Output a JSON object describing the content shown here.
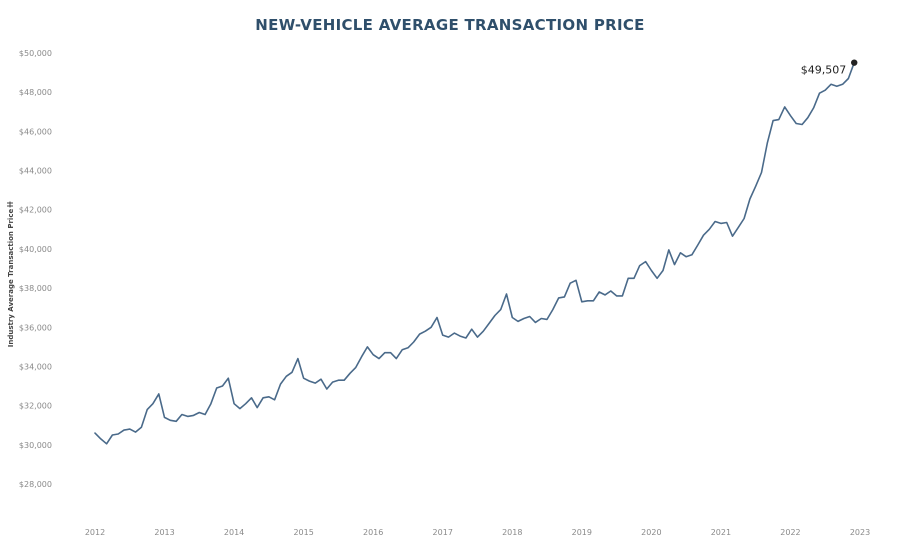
{
  "chart_data": {
    "type": "line",
    "title": "NEW-VEHICLE AVERAGE TRANSACTION PRICE",
    "ylabel": "Industry Average Transaction Price",
    "ylabel_icon": "sort-icon",
    "ylim": [
      26000,
      51000
    ],
    "yticks": [
      28000,
      30000,
      32000,
      34000,
      36000,
      38000,
      40000,
      42000,
      44000,
      46000,
      48000,
      50000
    ],
    "ytick_labels": [
      "$28,000",
      "$30,000",
      "$32,000",
      "$34,000",
      "$36,000",
      "$38,000",
      "$40,000",
      "$42,000",
      "$44,000",
      "$46,000",
      "$48,000",
      "$50,000"
    ],
    "xlim": [
      2011.5,
      2023.45
    ],
    "xticks": [
      2012,
      2013,
      2014,
      2015,
      2016,
      2017,
      2018,
      2019,
      2020,
      2021,
      2022,
      2023
    ],
    "xtick_labels": [
      "2012",
      "2013",
      "2014",
      "2015",
      "2016",
      "2017",
      "2018",
      "2019",
      "2020",
      "2021",
      "2022",
      "2023"
    ],
    "grid": false,
    "line_color": "#4a6a8a",
    "marker_color": "#222222",
    "end_label": "$49,507",
    "series": [
      {
        "x": [
          2012.0,
          2012.083,
          2012.167,
          2012.25,
          2012.333,
          2012.417,
          2012.5,
          2012.583,
          2012.667,
          2012.75,
          2012.833,
          2012.917,
          2013.0,
          2013.083,
          2013.167,
          2013.25,
          2013.333,
          2013.417,
          2013.5,
          2013.583,
          2013.667,
          2013.75,
          2013.833,
          2013.917,
          2014.0,
          2014.083,
          2014.167,
          2014.25,
          2014.333,
          2014.417,
          2014.5,
          2014.583,
          2014.667,
          2014.75,
          2014.833,
          2014.917,
          2015.0,
          2015.083,
          2015.167,
          2015.25,
          2015.333,
          2015.417,
          2015.5,
          2015.583,
          2015.667,
          2015.75,
          2015.833,
          2015.917,
          2016.0,
          2016.083,
          2016.167,
          2016.25,
          2016.333,
          2016.417,
          2016.5,
          2016.583,
          2016.667,
          2016.75,
          2016.833,
          2016.917,
          2017.0,
          2017.083,
          2017.167,
          2017.25,
          2017.333,
          2017.417,
          2017.5,
          2017.583,
          2017.667,
          2017.75,
          2017.833,
          2017.917,
          2018.0,
          2018.083,
          2018.167,
          2018.25,
          2018.333,
          2018.417,
          2018.5,
          2018.583,
          2018.667,
          2018.75,
          2018.833,
          2018.917,
          2019.0,
          2019.083,
          2019.167,
          2019.25,
          2019.333,
          2019.417,
          2019.5,
          2019.583,
          2019.667,
          2019.75,
          2019.833,
          2019.917,
          2020.0,
          2020.083,
          2020.167,
          2020.25,
          2020.333,
          2020.417,
          2020.5,
          2020.583,
          2020.667,
          2020.75,
          2020.833,
          2020.917,
          2021.0,
          2021.083,
          2021.167,
          2021.25,
          2021.333,
          2021.417,
          2021.5,
          2021.583,
          2021.667,
          2021.75,
          2021.833,
          2021.917,
          2022.0,
          2022.083,
          2022.167,
          2022.25,
          2022.333,
          2022.417,
          2022.5,
          2022.583,
          2022.667,
          2022.75,
          2022.833,
          2022.917
        ],
        "values": [
          30600,
          30300,
          30050,
          30500,
          30550,
          30750,
          30800,
          30650,
          30900,
          31800,
          32100,
          32600,
          31400,
          31250,
          31200,
          31550,
          31450,
          31500,
          31650,
          31550,
          32100,
          32900,
          33000,
          33400,
          32100,
          31850,
          32100,
          32400,
          31900,
          32400,
          32450,
          32300,
          33100,
          33500,
          33700,
          34400,
          33400,
          33250,
          33150,
          33350,
          32850,
          33200,
          33300,
          33300,
          33650,
          33950,
          34500,
          35000,
          34600,
          34400,
          34700,
          34700,
          34400,
          34850,
          34950,
          35250,
          35650,
          35800,
          36000,
          36500,
          35600,
          35500,
          35700,
          35550,
          35450,
          35900,
          35500,
          35800,
          36200,
          36600,
          36900,
          37700,
          36500,
          36300,
          36450,
          36550,
          36250,
          36450,
          36400,
          36900,
          37500,
          37550,
          38250,
          38400,
          37300,
          37350,
          37350,
          37800,
          37650,
          37850,
          37600,
          37600,
          38500,
          38500,
          39150,
          39350,
          38900,
          38500,
          38900,
          39950,
          39200,
          39800,
          39600,
          39700,
          40200,
          40700,
          41000,
          41400,
          41300,
          41350,
          40650,
          41100,
          41550,
          42550,
          43200,
          43900,
          45400,
          46550,
          46600,
          47250,
          46800,
          46400,
          46350,
          46700,
          47200,
          47950,
          48100,
          48400,
          48300,
          48400,
          48700,
          49507
        ]
      }
    ]
  }
}
